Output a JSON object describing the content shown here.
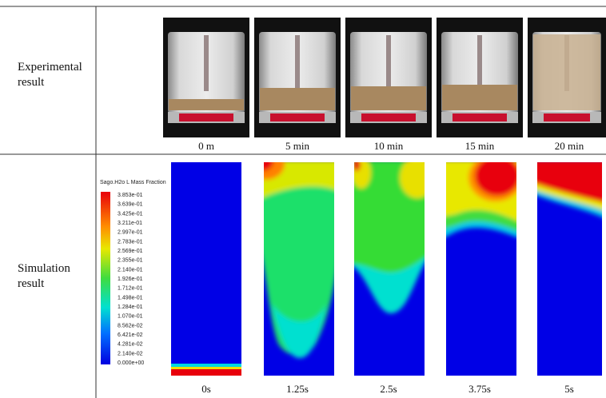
{
  "table": {
    "rows": [
      {
        "label_lines": [
          "Experimental",
          "result"
        ],
        "captions": [
          "0 m",
          "5 min",
          "10 min",
          "15 min",
          "20 min"
        ]
      },
      {
        "label_lines": [
          "Simulation",
          "result"
        ],
        "captions": [
          "0s",
          "1.25s",
          "2.5s",
          "3.75s",
          "5s"
        ]
      }
    ],
    "colorbar": {
      "title": "Sago.H2o L Mass Fraction",
      "labels": [
        "3.853e-01",
        "3.639e-01",
        "3.425e-01",
        "3.211e-01",
        "2.997e-01",
        "2.783e-01",
        "2.569e-01",
        "2.355e-01",
        "2.140e-01",
        "1.926e-01",
        "1.712e-01",
        "1.498e-01",
        "1.284e-01",
        "1.070e-01",
        "8.562e-02",
        "6.421e-02",
        "4.281e-02",
        "2.140e-02",
        "0.000e+00"
      ]
    }
  }
}
